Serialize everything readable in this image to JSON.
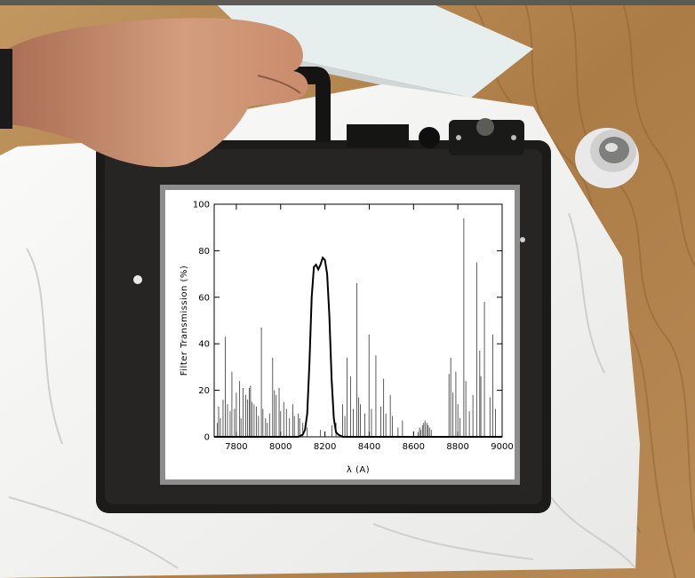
{
  "scene": {
    "colors": {
      "table_wood": "#b78a55",
      "paper": "#f3f3f1",
      "filter_holder": "#1c1b1a",
      "skin": "#c88f72",
      "inset_border": "#8d8d8d"
    }
  },
  "chart_data": {
    "type": "line",
    "xlabel": "λ (A)",
    "ylabel": "Filter Transmission (%)",
    "xlim": [
      7700,
      9000
    ],
    "ylim": [
      0,
      100
    ],
    "xticks": [
      7800,
      8000,
      8200,
      8400,
      8600,
      8800,
      9000
    ],
    "yticks": [
      0,
      20,
      40,
      60,
      80,
      100
    ],
    "grid": false,
    "series": [
      {
        "style": "thick-line",
        "x": [
          7700,
          8080,
          8100,
          8110,
          8120,
          8130,
          8140,
          8150,
          8160,
          8170,
          8180,
          8190,
          8200,
          8210,
          8220,
          8230,
          8240,
          8250,
          8260,
          8280,
          8300,
          9000
        ],
        "y": [
          0,
          0,
          1,
          3,
          10,
          32,
          60,
          73,
          74,
          72,
          74,
          77,
          76,
          70,
          52,
          25,
          8,
          2,
          1,
          0,
          0,
          0
        ]
      },
      {
        "style": "sky-emission-lines",
        "x": [
          7714,
          7720,
          7728,
          7740,
          7750,
          7760,
          7772,
          7780,
          7792,
          7800,
          7815,
          7821,
          7830,
          7842,
          7850,
          7858,
          7864,
          7870,
          7880,
          7890,
          7900,
          7913,
          7920,
          7932,
          7940,
          7950,
          7964,
          7972,
          7980,
          7993,
          8000,
          8014,
          8026,
          8040,
          8055,
          8062,
          8080,
          8086,
          8100,
          8120,
          8180,
          8232,
          8250,
          8280,
          8290,
          8300,
          8316,
          8328,
          8344,
          8352,
          8360,
          8380,
          8399,
          8410,
          8430,
          8452,
          8465,
          8475,
          8495,
          8505,
          8530,
          8550,
          8620,
          8627,
          8633,
          8640,
          8646,
          8652,
          8660,
          8666,
          8672,
          8680,
          8760,
          8768,
          8778,
          8791,
          8800,
          8810,
          8827,
          8836,
          8852,
          8868,
          8885,
          8899,
          8904,
          8920,
          8945,
          8958,
          8970
        ],
        "y": [
          6,
          13,
          8,
          16,
          43,
          14,
          11,
          28,
          12,
          19,
          24,
          8,
          21,
          18,
          16,
          21,
          22,
          15,
          14,
          13,
          9,
          47,
          12,
          8,
          6,
          10,
          34,
          20,
          18,
          21,
          11,
          15,
          12,
          8,
          14,
          9,
          10,
          8,
          6,
          4,
          3,
          5,
          6,
          14,
          9,
          34,
          26,
          12,
          66,
          17,
          14,
          10,
          44,
          12,
          35,
          13,
          25,
          10,
          18,
          9,
          4,
          7,
          2,
          4,
          3,
          5,
          6,
          7,
          6,
          5,
          4,
          3,
          27,
          34,
          19,
          28,
          14,
          8,
          94,
          24,
          11,
          18,
          75,
          37,
          26,
          58,
          17,
          44,
          12
        ]
      }
    ]
  }
}
